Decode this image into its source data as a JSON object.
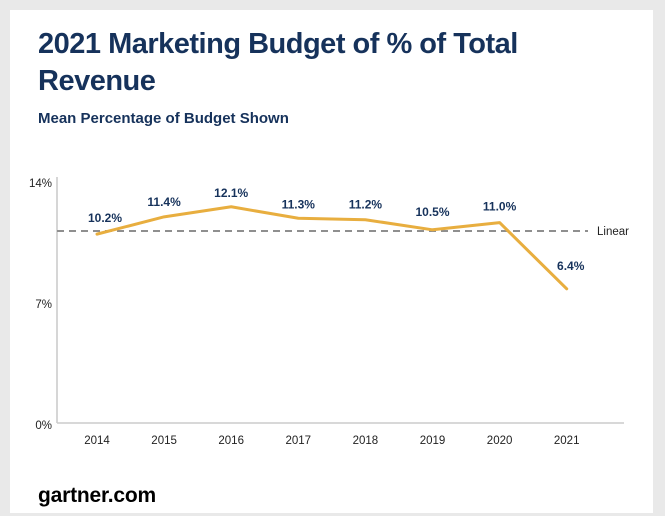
{
  "header": {
    "title": "2021 Marketing Budget of % of Total Revenue",
    "subtitle": "Mean Percentage of Budget Shown"
  },
  "footer": {
    "source": "gartner.com"
  },
  "colors": {
    "title_navy": "#16325b",
    "line_gold": "#e8ae3f",
    "axis_gray": "#cccccc",
    "reference_gray": "#8f8f8f",
    "tick_text": "#222222",
    "card_background": "#ffffff",
    "frame_border": "#e9e9e9",
    "footer_text": "#000000"
  },
  "chart_data": {
    "type": "line",
    "title": "2021 Marketing Budget of % of Total Revenue",
    "subtitle": "Mean Percentage of Budget Shown",
    "categories": [
      "2014",
      "2015",
      "2016",
      "2017",
      "2018",
      "2019",
      "2020",
      "2021"
    ],
    "values": [
      10.2,
      11.4,
      12.1,
      11.3,
      11.2,
      10.5,
      11.0,
      6.4
    ],
    "data_labels": [
      "10.2%",
      "11.4%",
      "12.1%",
      "11.3%",
      "11.2%",
      "10.5%",
      "11.0%",
      "6.4%"
    ],
    "xlabel": "",
    "ylabel": "",
    "ylim": [
      0,
      14
    ],
    "y_ticks": [
      {
        "value": 0,
        "label": "0%"
      },
      {
        "value": 7,
        "label": "7%"
      },
      {
        "value": 14,
        "label": "14%"
      }
    ],
    "grid": false,
    "legend_position": "none",
    "reference_line": {
      "label": "Linear",
      "style": "dashed",
      "orientation": "horizontal"
    }
  }
}
